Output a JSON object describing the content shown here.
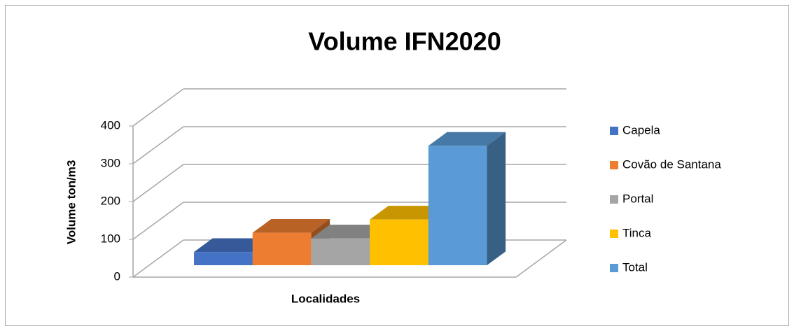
{
  "chart_data": {
    "type": "bar3d",
    "title": "Volume IFN2020",
    "y_label": "Volume ton/m3",
    "x_label": "Localidades",
    "categories": [
      null
    ],
    "series": [
      {
        "name": "Capela",
        "color": "#4472c4",
        "values": [
          35
        ]
      },
      {
        "name": "Covão de Santana",
        "color": "#ed7d31",
        "values": [
          86
        ]
      },
      {
        "name": "Portal",
        "color": "#a5a5a5",
        "values": [
          71
        ]
      },
      {
        "name": "Tinca",
        "color": "#ffc000",
        "values": [
          121
        ]
      },
      {
        "name": "Total",
        "color": "#5b9bd5",
        "values": [
          316
        ]
      }
    ],
    "ylim": [
      0,
      400
    ],
    "yticks": [
      0,
      100,
      200,
      300,
      400
    ],
    "grid": true,
    "legend": "right"
  }
}
